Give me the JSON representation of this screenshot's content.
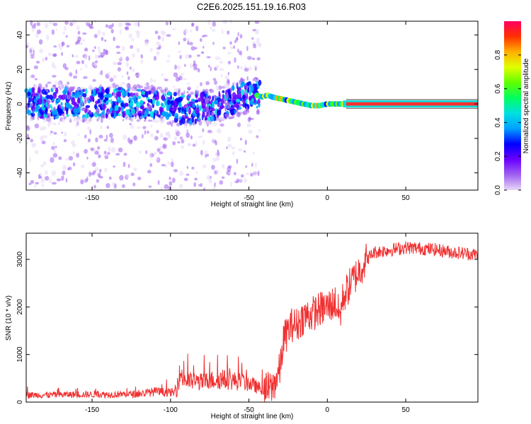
{
  "figure": {
    "title": "C2E6.2025.151.19.16.R03"
  },
  "chart_data": [
    {
      "type": "heatmap",
      "title": "C2E6.2025.151.19.16.R03",
      "xlabel": "Height of straight line (km)",
      "ylabel": "Frequency (Hz)",
      "xlim": [
        -192,
        96
      ],
      "ylim": [
        -50,
        48
      ],
      "x_ticks": [
        -150,
        -100,
        -50,
        0,
        50
      ],
      "y_ticks": [
        -40,
        -20,
        0,
        20,
        40
      ],
      "ridge": {
        "x": [
          -192,
          -160,
          -130,
          -110,
          -100,
          -90,
          -80,
          -70,
          -60,
          -55,
          -50,
          -45,
          -42,
          -38,
          -35,
          -30,
          -25,
          -20,
          -15,
          -10,
          -5,
          0,
          5,
          10,
          20,
          50,
          96
        ],
        "y": [
          1,
          0,
          1,
          0,
          -2,
          -3,
          -2,
          0,
          2,
          4,
          5,
          5,
          4,
          5,
          4,
          3,
          2,
          1,
          0,
          -1,
          -1,
          0,
          0,
          0,
          0,
          0,
          0
        ]
      },
      "colorbar": {
        "label": "Normalized spectral amplitude",
        "range": [
          0,
          1
        ],
        "ticks": [
          0.0,
          0.2,
          0.4,
          0.6,
          0.8
        ],
        "colormap": [
          "#e8d8f8",
          "#a060f0",
          "#6a00ff",
          "#0000ff",
          "#00a0ff",
          "#00e0e0",
          "#00ff60",
          "#60ff00",
          "#e0ff00",
          "#ffb000",
          "#ff3000",
          "#ff0060"
        ]
      }
    },
    {
      "type": "line",
      "xlabel": "Height of straight line (km)",
      "ylabel": "SNR (10 * v/v)",
      "xlim": [
        -192,
        96
      ],
      "ylim": [
        0,
        3550
      ],
      "x_ticks": [
        -150,
        -100,
        -50,
        0,
        50
      ],
      "y_ticks": [
        0,
        1000,
        2000,
        3000
      ],
      "color": "#f03030",
      "series": [
        {
          "x": [
            -192,
            -180,
            -160,
            -140,
            -120,
            -110,
            -100,
            -96,
            -94,
            -90,
            -80,
            -70,
            -60,
            -50,
            -45,
            -40,
            -35,
            -30,
            -28,
            -25,
            -22,
            -20,
            -15,
            -10,
            -5,
            0,
            5,
            8,
            10,
            15,
            20,
            25,
            30,
            40,
            50,
            60,
            70,
            80,
            96
          ],
          "y": [
            150,
            150,
            160,
            160,
            170,
            220,
            200,
            200,
            600,
            450,
            420,
            480,
            450,
            400,
            320,
            250,
            300,
            700,
            1300,
            1500,
            1650,
            1600,
            1800,
            1850,
            1950,
            2000,
            2100,
            1800,
            2200,
            2500,
            2750,
            3000,
            3150,
            3200,
            3250,
            3230,
            3200,
            3150,
            3100
          ]
        }
      ]
    }
  ]
}
